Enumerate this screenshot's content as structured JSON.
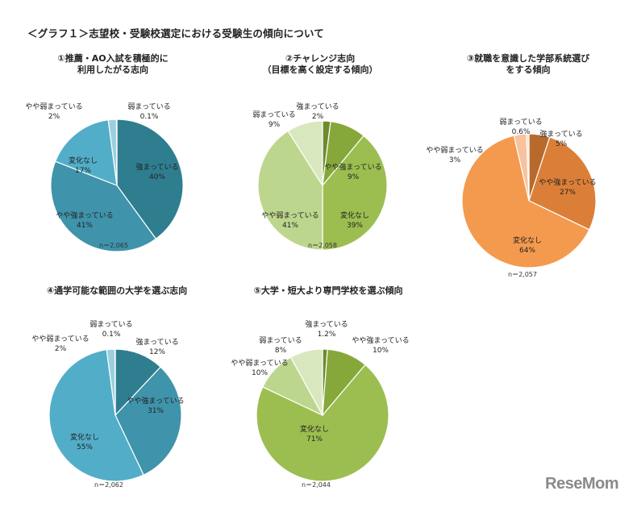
{
  "page_title": "＜グラフ１＞志望校・受験校選定における受験生の傾向について",
  "watermark": "ReseMom",
  "chart_data": [
    {
      "type": "pie",
      "title": "①推薦・AO入試を積極的に\n利用したがる志向",
      "n_label": "n＝2,065",
      "slices": [
        {
          "label": "強まっている",
          "value": 40,
          "value_label": "40%",
          "color": "#2f7e90"
        },
        {
          "label": "やや強まっている",
          "value": 41,
          "value_label": "41%",
          "color": "#3f93ab"
        },
        {
          "label": "変化なし",
          "value": 17,
          "value_label": "17%",
          "color": "#52aec8"
        },
        {
          "label": "やや弱まっている",
          "value": 2,
          "value_label": "2%",
          "color": "#9bd0df"
        },
        {
          "label": "弱まっている",
          "value": 0.1,
          "value_label": "0.1%",
          "color": "#c6e5ee"
        }
      ]
    },
    {
      "type": "pie",
      "title": "②チャレンジ志向\n（目標を高く設定する傾向）",
      "n_label": "n＝2,058",
      "slices": [
        {
          "label": "強まっている",
          "value": 2,
          "value_label": "2%",
          "color": "#6f8a2e"
        },
        {
          "label": "やや強まっている",
          "value": 9,
          "value_label": "9%",
          "color": "#86a83a"
        },
        {
          "label": "変化なし",
          "value": 39,
          "value_label": "39%",
          "color": "#9cbe50"
        },
        {
          "label": "やや弱まっている",
          "value": 41,
          "value_label": "41%",
          "color": "#bdd68d"
        },
        {
          "label": "弱まっている",
          "value": 9,
          "value_label": "9%",
          "color": "#d9e7bf"
        }
      ]
    },
    {
      "type": "pie",
      "title": "③就職を意識した学部系統選び\nをする傾向",
      "n_label": "n＝2,057",
      "slices": [
        {
          "label": "強まっている",
          "value": 5,
          "value_label": "5%",
          "color": "#b86a2c"
        },
        {
          "label": "やや強まっている",
          "value": 27,
          "value_label": "27%",
          "color": "#db7f38"
        },
        {
          "label": "変化なし",
          "value": 64,
          "value_label": "64%",
          "color": "#f49a4e"
        },
        {
          "label": "やや弱まっている",
          "value": 3,
          "value_label": "3%",
          "color": "#f7c39e"
        },
        {
          "label": "弱まっている",
          "value": 0.6,
          "value_label": "0.6%",
          "color": "#fadcc6"
        }
      ]
    },
    {
      "type": "pie",
      "title": "④通学可能な範囲の大学を選ぶ志向",
      "n_label": "n＝2,062",
      "slices": [
        {
          "label": "強まっている",
          "value": 12,
          "value_label": "12%",
          "color": "#2f7e90"
        },
        {
          "label": "やや強まっている",
          "value": 31,
          "value_label": "31%",
          "color": "#3f93ab"
        },
        {
          "label": "変化なし",
          "value": 55,
          "value_label": "55%",
          "color": "#52aec8"
        },
        {
          "label": "やや弱まっている",
          "value": 2,
          "value_label": "2%",
          "color": "#9bd0df"
        },
        {
          "label": "弱まっている",
          "value": 0.1,
          "value_label": "0.1%",
          "color": "#c6e5ee"
        }
      ]
    },
    {
      "type": "pie",
      "title": "⑤大学・短大より専門学校を選ぶ傾向",
      "n_label": "n＝2,044",
      "slices": [
        {
          "label": "強まっている",
          "value": 1.2,
          "value_label": "1.2%",
          "color": "#6f8a2e"
        },
        {
          "label": "やや強まっている",
          "value": 10,
          "value_label": "10%",
          "color": "#86a83a"
        },
        {
          "label": "変化なし",
          "value": 71,
          "value_label": "71%",
          "color": "#9cbe50"
        },
        {
          "label": "やや弱まっている",
          "value": 10,
          "value_label": "10%",
          "color": "#bdd68d"
        },
        {
          "label": "弱まっている",
          "value": 8,
          "value_label": "8%",
          "color": "#d9e7bf"
        }
      ]
    }
  ]
}
